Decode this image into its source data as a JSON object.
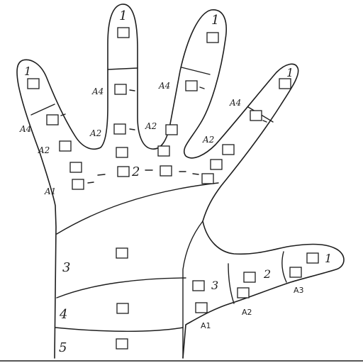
{
  "zones": [
    {
      "id": "thumb-tip",
      "label": "1"
    },
    {
      "id": "thumb-mid",
      "label": "2"
    },
    {
      "id": "thumb-base",
      "label": "3"
    },
    {
      "id": "palm-row-2",
      "label": "2"
    },
    {
      "id": "palm-3",
      "label": "3"
    },
    {
      "id": "palm-4",
      "label": "4"
    },
    {
      "id": "wrist-5",
      "label": "5"
    },
    {
      "id": "little-tip",
      "label": "1"
    },
    {
      "id": "ring-tip",
      "label": "1"
    },
    {
      "id": "middle-tip",
      "label": "1"
    },
    {
      "id": "index-tip",
      "label": "1"
    }
  ],
  "joints": [
    {
      "id": "little-a1",
      "label": "A1"
    },
    {
      "id": "little-a2",
      "label": "A2"
    },
    {
      "id": "little-a4",
      "label": "A4"
    },
    {
      "id": "ring-a2",
      "label": "A2"
    },
    {
      "id": "ring-a4",
      "label": "A4"
    },
    {
      "id": "middle-a2",
      "label": "A2"
    },
    {
      "id": "middle-a4",
      "label": "A4"
    },
    {
      "id": "index-a2",
      "label": "A2"
    },
    {
      "id": "index-a4",
      "label": "A4"
    },
    {
      "id": "thumb-a1",
      "label": "A1"
    },
    {
      "id": "thumb-a2",
      "label": "A2"
    },
    {
      "id": "thumb-a3",
      "label": "A3"
    }
  ]
}
